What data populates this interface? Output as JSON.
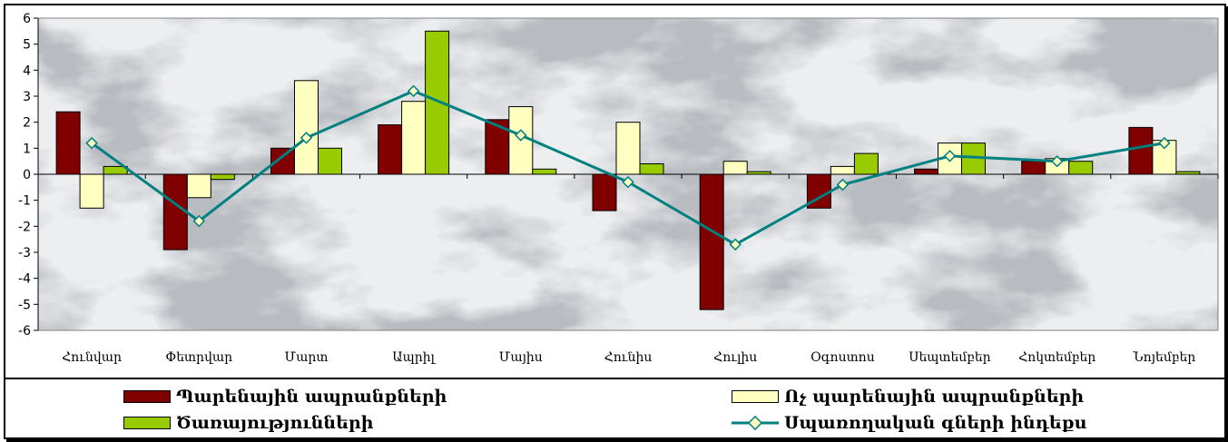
{
  "chart_data": {
    "type": "bar",
    "categories": [
      "Հունվար",
      "Փետրվար",
      "Մարտ",
      "Ապրիլ",
      "Մայիս",
      "Հունիս",
      "Հուլիս",
      "Օգոստոս",
      "Սեպտեմբեր",
      "Հոկտեմբեր",
      "Նոյեմբեր"
    ],
    "ylim": [
      -6,
      6
    ],
    "yticks": [
      "-6",
      "-5",
      "-4",
      "-3",
      "-2",
      "-1",
      "0",
      "1",
      "2",
      "3",
      "4",
      "5",
      "6"
    ],
    "grid": false,
    "legend_position": "bottom",
    "series": [
      {
        "name": "Պարենային ապրանքների",
        "kind": "bar",
        "color": "#800000",
        "values": [
          2.4,
          -2.9,
          1.0,
          1.9,
          2.1,
          -1.4,
          -5.2,
          -1.3,
          0.2,
          0.5,
          1.8
        ]
      },
      {
        "name": "Ոչ պարենային  ապրանքների",
        "kind": "bar",
        "color": "#ffffc0",
        "values": [
          -1.3,
          -0.9,
          3.6,
          2.8,
          2.6,
          2.0,
          0.5,
          0.3,
          1.2,
          0.6,
          1.3
        ]
      },
      {
        "name": "Ծառայությունների",
        "kind": "bar",
        "color": "#99cc00",
        "values": [
          0.3,
          -0.2,
          1.0,
          5.5,
          0.2,
          0.4,
          0.1,
          0.8,
          1.2,
          0.5,
          0.1
        ]
      },
      {
        "name": "Սպառողական գների ինդեքս",
        "kind": "line",
        "color": "#008080",
        "values": [
          1.2,
          -1.8,
          1.4,
          3.2,
          1.5,
          -0.3,
          -2.7,
          -0.4,
          0.7,
          0.5,
          1.2
        ]
      }
    ]
  }
}
